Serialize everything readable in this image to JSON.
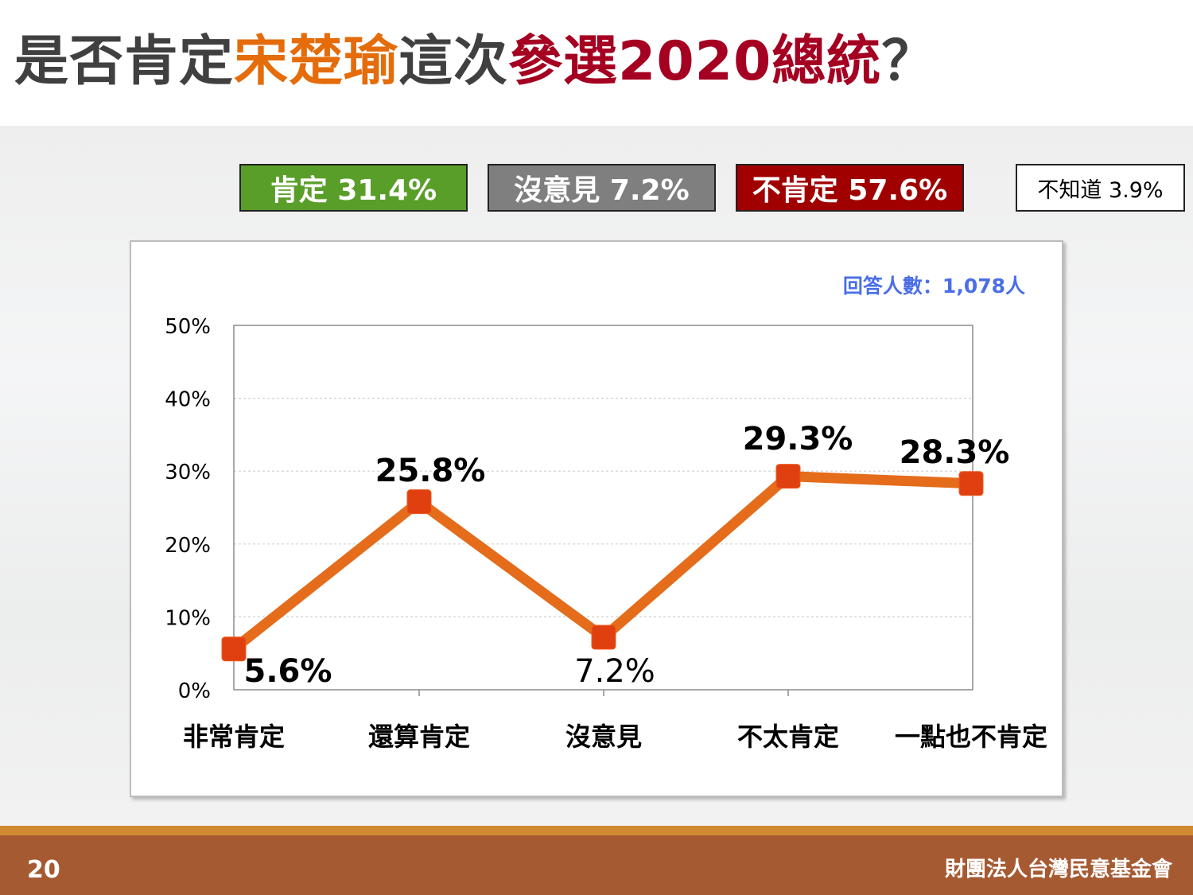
{
  "title": {
    "segments": [
      {
        "text": "是否肯定",
        "color": "#404040"
      },
      {
        "text": "宋楚瑜",
        "color": "#e46c0a"
      },
      {
        "text": "這次",
        "color": "#404040"
      },
      {
        "text": "參選2020總統",
        "color": "#a50021"
      },
      {
        "text": "？",
        "color": "#404040"
      }
    ]
  },
  "summary": {
    "affirm": {
      "label": "肯定 31.4%",
      "color": "#5a9e2a"
    },
    "no_opinion": {
      "label": "沒意見 7.2%",
      "color": "#7f7f7f"
    },
    "not_affirm": {
      "label": "不肯定 57.6%",
      "color": "#a00000"
    },
    "dont_know": {
      "label": "不知道 3.9%",
      "color": "#ffffff"
    }
  },
  "respondents": "回答人數：1,078人",
  "chart_data": {
    "type": "line",
    "categories": [
      "非常肯定",
      "還算肯定",
      "沒意見",
      "不太肯定",
      "一點也不肯定"
    ],
    "values": [
      5.6,
      25.8,
      7.2,
      29.3,
      28.3
    ],
    "data_labels": [
      "5.6%",
      "25.8%",
      "7.2%",
      "29.3%",
      "28.3%"
    ],
    "yticks": [
      "0%",
      "10%",
      "20%",
      "30%",
      "40%",
      "50%"
    ],
    "ylim": [
      0,
      50
    ],
    "line_color": "#e46c1a",
    "marker_color": "#e04010",
    "grid": true
  },
  "footer": {
    "page": "20",
    "org": "財團法人台灣民意基金會"
  }
}
